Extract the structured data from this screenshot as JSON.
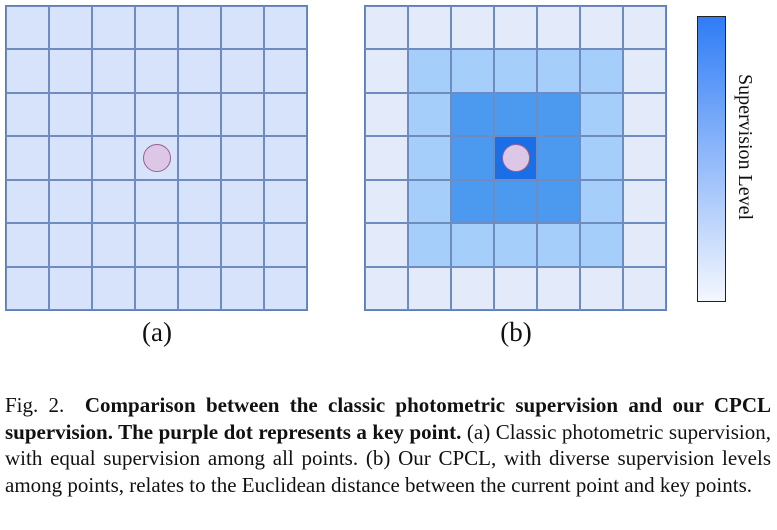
{
  "figure": {
    "subfigures": [
      {
        "label": "(a)",
        "levels": [
          [
            1,
            1,
            1,
            1,
            1,
            1,
            1
          ],
          [
            1,
            1,
            1,
            1,
            1,
            1,
            1
          ],
          [
            1,
            1,
            1,
            1,
            1,
            1,
            1
          ],
          [
            1,
            1,
            1,
            1,
            1,
            1,
            1
          ],
          [
            1,
            1,
            1,
            1,
            1,
            1,
            1
          ],
          [
            1,
            1,
            1,
            1,
            1,
            1,
            1
          ],
          [
            1,
            1,
            1,
            1,
            1,
            1,
            1
          ]
        ],
        "keypoint": {
          "row": 3,
          "col": 3
        }
      },
      {
        "label": "(b)",
        "levels": [
          [
            0,
            0,
            0,
            0,
            0,
            0,
            0
          ],
          [
            0,
            2,
            2,
            2,
            2,
            2,
            0
          ],
          [
            0,
            2,
            3,
            3,
            3,
            2,
            0
          ],
          [
            0,
            2,
            3,
            4,
            3,
            2,
            0
          ],
          [
            0,
            2,
            3,
            3,
            3,
            2,
            0
          ],
          [
            0,
            2,
            2,
            2,
            2,
            2,
            0
          ],
          [
            0,
            0,
            0,
            0,
            0,
            0,
            0
          ]
        ],
        "keypoint": {
          "row": 3,
          "col": 3
        }
      }
    ],
    "level_colors": [
      "#e3ebfb",
      "#d6e3fa",
      "#a6cefa",
      "#4c99f0",
      "#1a6ee6"
    ],
    "colorbar": {
      "label": "Supervision Level",
      "color_high": "#2f7cf6",
      "color_low": "#f4f7fd"
    },
    "caption": {
      "prefix": "Fig. 2.",
      "bold": "Comparison between the classic photometric supervision and our CPCL supervision. The purple dot represents a key point.",
      "rest": "(a) Classic photometric supervision, with equal supervision among all points. (b) Our CPCL, with diverse supervision levels among points, relates to the Euclidean distance between the current point and key points."
    }
  }
}
